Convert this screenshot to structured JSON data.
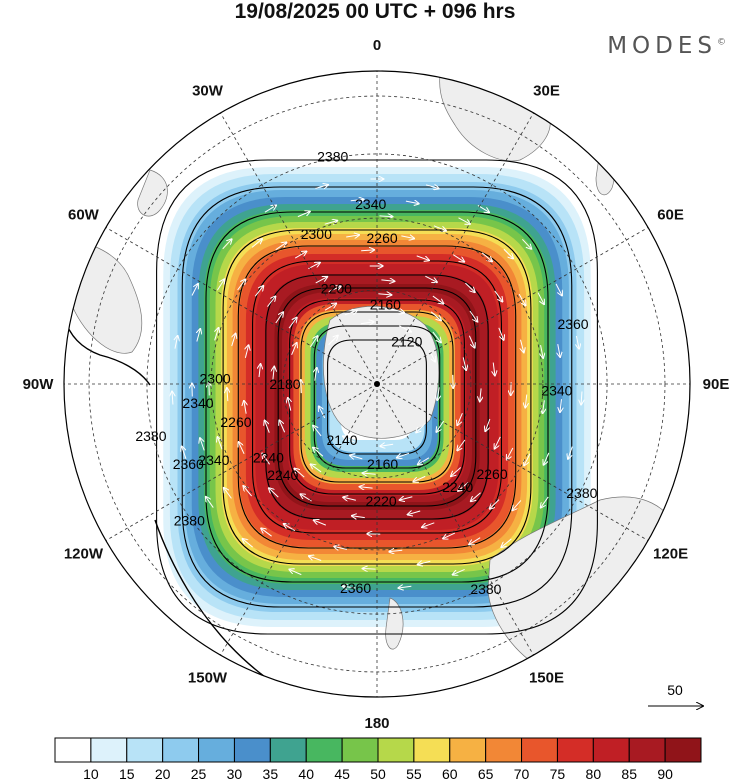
{
  "title": "19/08/2025  00 UTC  + 096 hrs",
  "brand": "MODES",
  "brand_mark": "©",
  "colors": {
    "land": "#eeeeee",
    "ocean": "#ffffff",
    "contour": "#000000",
    "vectors": "#ffffff"
  },
  "map": {
    "projection": "south-polar-stereographic",
    "field": "wind speed (shaded), geopotential height contours, wind vectors",
    "longitude_labels": [
      "0",
      "30E",
      "60E",
      "90E",
      "120E",
      "150E",
      "180",
      "150W",
      "120W",
      "90W",
      "60W",
      "30W"
    ],
    "contour_labels": [
      {
        "text": "2380",
        "lon": -11
      },
      {
        "text": "2380",
        "lon": -103
      },
      {
        "text": "2380",
        "lon": -126
      },
      {
        "text": "2380",
        "lon": 152
      },
      {
        "text": "2380",
        "lon": 118
      },
      {
        "text": "2360",
        "lon": 73
      },
      {
        "text": "2360",
        "lon": -113
      },
      {
        "text": "2360",
        "lon": -174
      },
      {
        "text": "2340",
        "lon": -2
      },
      {
        "text": "2340",
        "lon": 92
      },
      {
        "text": "2340",
        "lon": -115
      },
      {
        "text": "2340",
        "lon": -96
      },
      {
        "text": "2300",
        "lon": -22
      },
      {
        "text": "2300",
        "lon": -88
      },
      {
        "text": "2260",
        "lon": 2
      },
      {
        "text": "2260",
        "lon": -105
      },
      {
        "text": "2260",
        "lon": 128
      },
      {
        "text": "2240",
        "lon": -134
      },
      {
        "text": "2240",
        "lon": -124
      },
      {
        "text": "2240",
        "lon": 142
      },
      {
        "text": "2220",
        "lon": 178
      },
      {
        "text": "2200",
        "lon": -23
      },
      {
        "text": "2180",
        "lon": -90
      },
      {
        "text": "2160",
        "lon": 6
      },
      {
        "text": "2160",
        "lon": 176
      },
      {
        "text": "2140",
        "lon": -148
      },
      {
        "text": "2120",
        "lon": 35
      }
    ],
    "reference_vector": {
      "label": "50"
    }
  },
  "colorbar": {
    "ticks": [
      "10",
      "15",
      "20",
      "25",
      "30",
      "35",
      "40",
      "45",
      "50",
      "55",
      "60",
      "65",
      "70",
      "75",
      "80",
      "85",
      "90"
    ],
    "colors": [
      "#ffffff",
      "#ddf2fb",
      "#b8e3f7",
      "#8ecbee",
      "#66aedd",
      "#4a8fcb",
      "#3fa390",
      "#48b760",
      "#77c54a",
      "#b6d84a",
      "#f5de55",
      "#f6b143",
      "#f28736",
      "#e8562c",
      "#d42d27",
      "#c01f25",
      "#a81a22",
      "#901419"
    ]
  }
}
